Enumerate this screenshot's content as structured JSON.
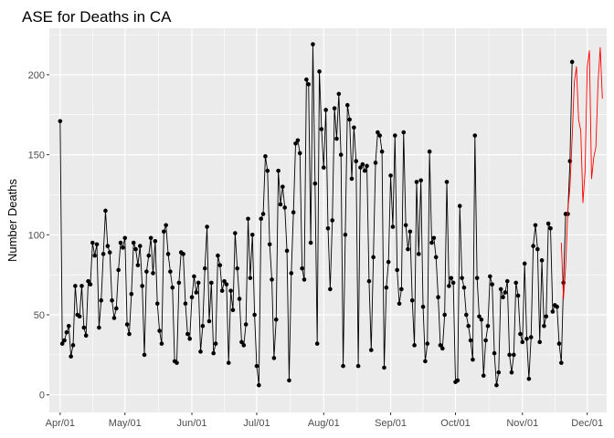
{
  "chart_data": {
    "type": "line",
    "title": "ASE for Deaths in CA",
    "xlabel": "",
    "ylabel": "Number Deaths",
    "grid": true,
    "legend": "none",
    "xlim": [
      "2020-03-27",
      "2020-12-10"
    ],
    "ylim": [
      -11,
      229
    ],
    "y_ticks": [
      0,
      50,
      100,
      150,
      200
    ],
    "x_ticks": [
      {
        "date": "2020-04-01",
        "label": "Apr/01"
      },
      {
        "date": "2020-05-01",
        "label": "May/01"
      },
      {
        "date": "2020-06-01",
        "label": "Jun/01"
      },
      {
        "date": "2020-07-01",
        "label": "Jul/01"
      },
      {
        "date": "2020-08-01",
        "label": "Aug/01"
      },
      {
        "date": "2020-09-01",
        "label": "Sep/01"
      },
      {
        "date": "2020-10-01",
        "label": "Oct/01"
      },
      {
        "date": "2020-11-01",
        "label": "Nov/01"
      },
      {
        "date": "2020-12-01",
        "label": "Dec/01"
      }
    ],
    "series": [
      {
        "style": "line+points",
        "color": "#000000",
        "start_date": "2020-04-01",
        "values": [
          171,
          32,
          34,
          39,
          43,
          24,
          31,
          68,
          50,
          49,
          68,
          42,
          37,
          71,
          69,
          95,
          87,
          94,
          42,
          59,
          88,
          115,
          93,
          89,
          59,
          48,
          54,
          78,
          95,
          92,
          98,
          44,
          38,
          63,
          95,
          91,
          81,
          93,
          68,
          25,
          77,
          87,
          98,
          76,
          96,
          57,
          40,
          32,
          102,
          106,
          88,
          77,
          67,
          21,
          20,
          70,
          89,
          88,
          57,
          38,
          35,
          61,
          74,
          64,
          70,
          27,
          43,
          79,
          105,
          46,
          70,
          26,
          32,
          87,
          81,
          65,
          71,
          69,
          20,
          65,
          53,
          101,
          79,
          60,
          33,
          31,
          44,
          110,
          73,
          100,
          50,
          18,
          6,
          110,
          113,
          149,
          140,
          94,
          72,
          23,
          47,
          140,
          119,
          130,
          117,
          90,
          9,
          76,
          114,
          157,
          159,
          151,
          79,
          72,
          197,
          194,
          95,
          219,
          132,
          32,
          202,
          166,
          142,
          178,
          104,
          66,
          109,
          179,
          160,
          188,
          150,
          18,
          100,
          181,
          172,
          135,
          167,
          146,
          18,
          142,
          144,
          140,
          143,
          71,
          28,
          86,
          145,
          164,
          162,
          152,
          17,
          67,
          83,
          137,
          105,
          162,
          78,
          57,
          66,
          164,
          106,
          91,
          102,
          59,
          31,
          133,
          88,
          134,
          55,
          21,
          32,
          152,
          95,
          98,
          86,
          61,
          31,
          29,
          50,
          133,
          68,
          73,
          70,
          8,
          9,
          118,
          73,
          67,
          50,
          43,
          34,
          22,
          162,
          73,
          49,
          47,
          12,
          34,
          43,
          74,
          69,
          26,
          6,
          14,
          66,
          61,
          64,
          71,
          25,
          14,
          25,
          70,
          62,
          38,
          33,
          82,
          35,
          10,
          36,
          93,
          106,
          91,
          33,
          84,
          43,
          49,
          107,
          104,
          52,
          56,
          55,
          32,
          20,
          70,
          113,
          113,
          146,
          208
        ]
      },
      {
        "style": "line",
        "color": "#ff0000",
        "start_date": "2020-11-19",
        "values": [
          95,
          60,
          80,
          115,
          130,
          160,
          195,
          205,
          172,
          165,
          120,
          140,
          205,
          215,
          135,
          148,
          155,
          195,
          217,
          185
        ]
      }
    ]
  }
}
